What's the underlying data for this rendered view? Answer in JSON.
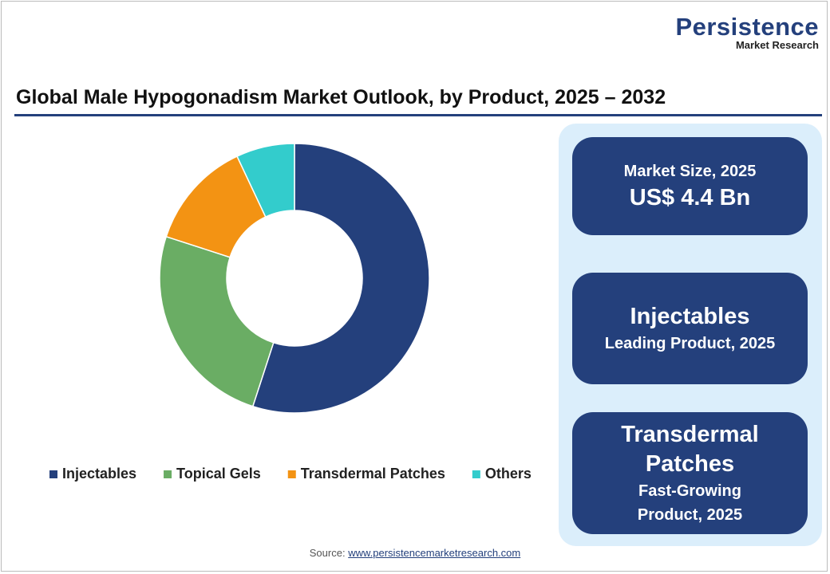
{
  "brand": {
    "name": "Persistence",
    "tagline": "Market Research"
  },
  "chart_data": {
    "type": "donut",
    "title": "Global Male Hypogonadism Market Outlook, by Product, 2025 – 2032",
    "categories": [
      "Injectables",
      "Topical Gels",
      "Transdermal Patches",
      "Others"
    ],
    "values": [
      55,
      25,
      13,
      7
    ],
    "colors": [
      "#24407c",
      "#6aad64",
      "#f39313",
      "#33cccc"
    ],
    "legend": "bottom"
  },
  "cards": [
    {
      "label": "Market Size, 2025",
      "headline": "US$ 4.4 Bn"
    },
    {
      "headline": "Injectables",
      "label": "Leading Product, 2025"
    },
    {
      "headline": "Transdermal Patches",
      "label": "Fast-Growing Product, 2025"
    }
  ],
  "source": {
    "label": "Source:",
    "link": "www.persistencemarketresearch.com"
  }
}
